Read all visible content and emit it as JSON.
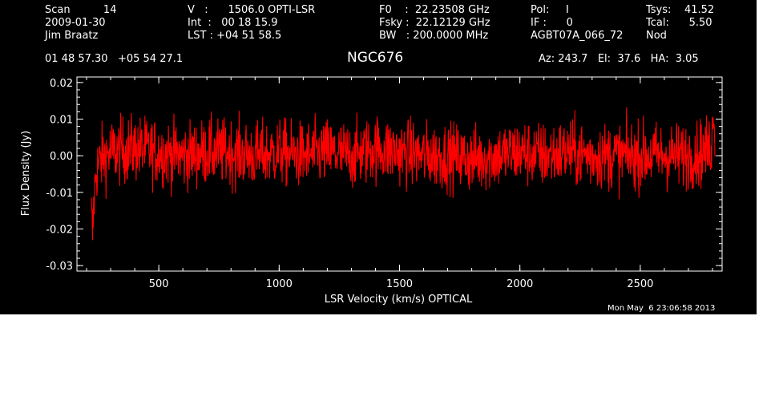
{
  "header": {
    "col1": [
      "Scan          14",
      "2009-01-30",
      "Jim Braatz"
    ],
    "col2": [
      "V   :      1506.0 OPTI-LSR",
      "Int  :   00 18 15.9",
      "LST : +04 51 58.5"
    ],
    "col3": [
      "F0    :  22.23508 GHz",
      "Fsky :  22.12129 GHz",
      "BW   : 200.0000 MHz"
    ],
    "col4": [
      "Pol:     I",
      "IF :      0",
      "AGBT07A_066_72"
    ],
    "col5": [
      "Tsys:    41.52",
      "Tcal:      5.50",
      "Nod"
    ],
    "coords": "01 48 57.30   +05 54 27.1",
    "source": "NGC676",
    "azel": "Az: 243.7   El:  37.6   HA:  3.05",
    "timestamp": "Mon May  6 23:06:58 2013"
  },
  "chart_data": {
    "type": "line",
    "title": "NGC676",
    "xlabel": "LSR Velocity (km/s) OPTICAL",
    "ylabel": "Flux Density (Jy)",
    "xlim": [
      160,
      2840
    ],
    "ylim": [
      -0.0315,
      0.0215
    ],
    "xticks": [
      500,
      1000,
      1500,
      2000,
      2500
    ],
    "yticks": [
      -0.03,
      -0.02,
      -0.01,
      0.0,
      0.01,
      0.02
    ],
    "ytick_labels": [
      "-0.03",
      "-0.02",
      "-0.01",
      "0.00",
      "0.01",
      "0.02"
    ],
    "grid": false,
    "series": [
      {
        "color": "#ff0000",
        "x": [
          220,
          225,
          230,
          240,
          260,
          300,
          400,
          500,
          600,
          700,
          800,
          900,
          1000,
          1100,
          1200,
          1300,
          1400,
          1500,
          1600,
          1700,
          1800,
          1900,
          2000,
          2100,
          2200,
          2300,
          2400,
          2500,
          2600,
          2700,
          2760,
          2790,
          2800,
          2805,
          2810
        ],
        "y": [
          -0.016,
          -0.022,
          -0.013,
          -0.004,
          -0.001,
          0.001,
          0.002,
          0.001,
          0.0,
          0.001,
          0.001,
          0.0,
          0.001,
          0.0,
          0.001,
          0.0,
          0.002,
          0.001,
          0.0,
          0.0,
          -0.001,
          0.0,
          0.001,
          0.0,
          0.001,
          0.0,
          0.0,
          0.0,
          0.0,
          0.0,
          0.001,
          0.002,
          0.006,
          0.013,
          0.008
        ],
        "noise_rms": 0.0045
      }
    ]
  }
}
